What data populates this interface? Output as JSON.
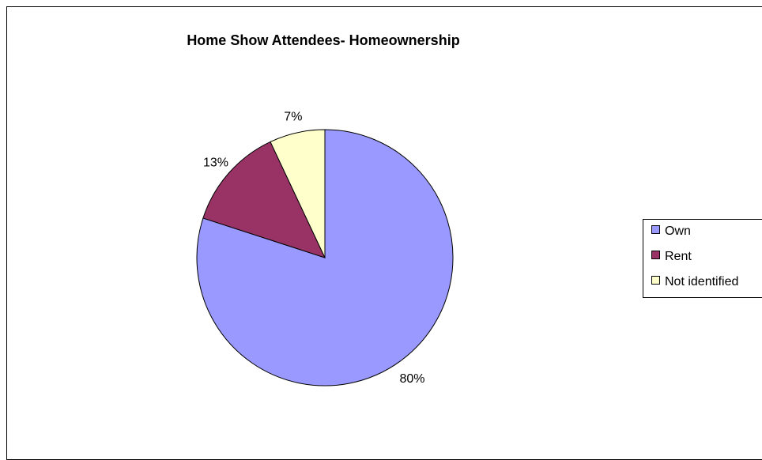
{
  "chart_data": {
    "type": "pie",
    "title": "Home Show Attendees- Homeownership",
    "categories": [
      "Own",
      "Rent",
      "Not identified"
    ],
    "values": [
      80,
      13,
      7
    ],
    "labels": [
      "80%",
      "13%",
      "7%"
    ],
    "colors": [
      "#9999ff",
      "#993366",
      "#ffffcc"
    ],
    "start_angle_deg": 0,
    "direction": "clockwise",
    "legend": "right"
  }
}
